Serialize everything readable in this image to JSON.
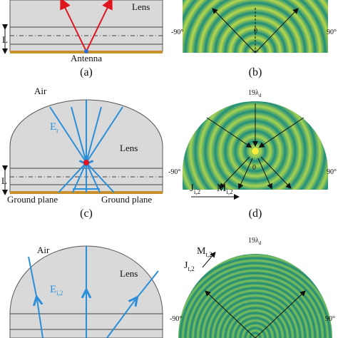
{
  "panel_a": {
    "lens": "Lens",
    "thickness": "L",
    "antenna": "Antenna",
    "caption": "(a)"
  },
  "panel_b": {
    "left_angle": "-90°",
    "center": "0",
    "right_angle": "90°",
    "caption": "(b)"
  },
  "panel_c": {
    "air": "Air",
    "field": {
      "base": "E",
      "sub": "r"
    },
    "lens": "Lens",
    "thickness": "L",
    "ground_left": "Ground plane",
    "ground_right": "Ground plane",
    "caption": "(c)"
  },
  "panel_d": {
    "radius": {
      "base": "19λ",
      "sub": "d"
    },
    "left_angle": "-90°",
    "center": "0",
    "right_angle": "90°",
    "current_j": {
      "base": "J",
      "sub": "i,2"
    },
    "current_m": {
      "base": "M",
      "sub": "i,2"
    },
    "caption": "(d)"
  },
  "panel_e": {
    "air": "Air",
    "field": {
      "base": "E",
      "sub": "i,2"
    },
    "lens": "Lens"
  },
  "panel_f": {
    "radius": {
      "base": "19λ",
      "sub": "d"
    },
    "current_m": {
      "base": "M",
      "sub": "t,2"
    },
    "current_j": {
      "base": "J",
      "sub": "t,2"
    },
    "left_angle": "-90°",
    "right_angle": "90°"
  }
}
